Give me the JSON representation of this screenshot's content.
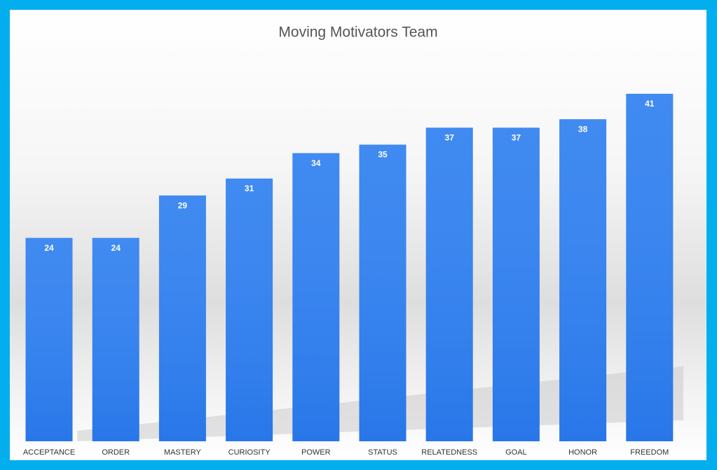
{
  "chart_data": {
    "type": "bar",
    "title": "Moving Motivators Team",
    "categories": [
      "ACCEPTANCE",
      "ORDER",
      "MASTERY",
      "CURIOSITY",
      "POWER",
      "STATUS",
      "RELATEDNESS",
      "GOAL",
      "HONOR",
      "FREEDOM"
    ],
    "values": [
      24,
      24,
      29,
      31,
      34,
      35,
      37,
      37,
      38,
      41
    ],
    "color": "#2f80f0"
  }
}
